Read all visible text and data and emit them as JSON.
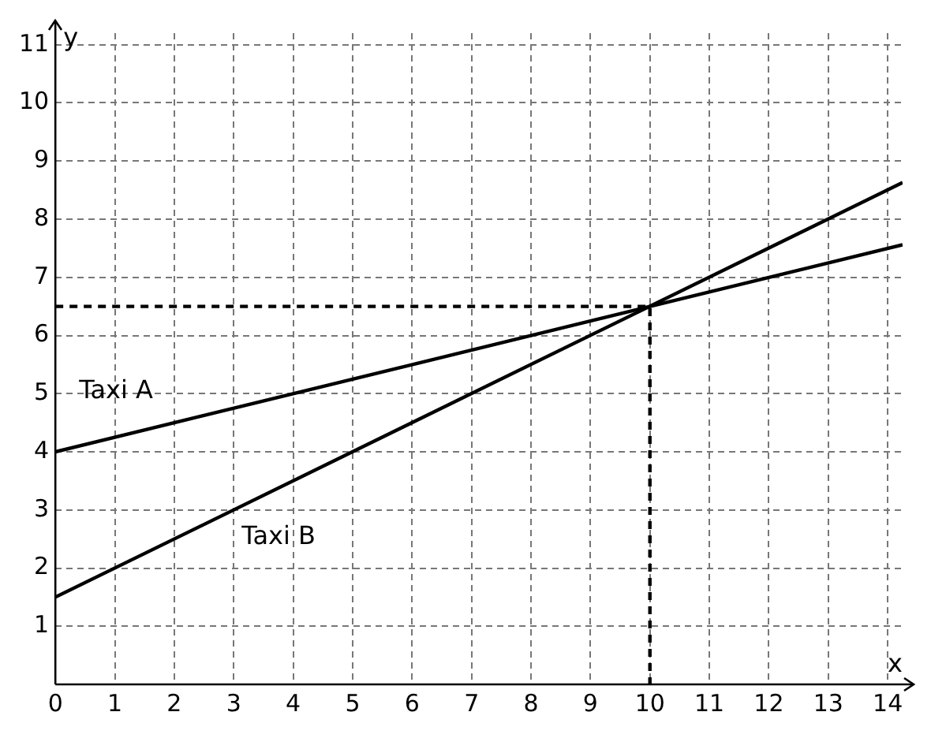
{
  "chart_data": {
    "type": "line",
    "xlabel": "x",
    "ylabel": "y",
    "xlim": [
      0,
      14.25
    ],
    "ylim": [
      0,
      11.2
    ],
    "xticks": [
      0,
      1,
      2,
      3,
      4,
      5,
      6,
      7,
      8,
      9,
      10,
      11,
      12,
      13,
      14
    ],
    "yticks": [
      1,
      2,
      3,
      4,
      5,
      6,
      7,
      8,
      9,
      10,
      11
    ],
    "grid": true,
    "legend": false,
    "marker": "none",
    "series": [
      {
        "name": "Taxi A",
        "color": "#000000",
        "x": [
          0,
          14.25
        ],
        "values": [
          4,
          7.56
        ],
        "line_style": "solid"
      },
      {
        "name": "Taxi B",
        "color": "#000000",
        "x": [
          0,
          14.25
        ],
        "values": [
          1.5,
          8.63
        ],
        "line_style": "solid"
      },
      {
        "type": "line",
        "color": "#000000",
        "x": [
          0,
          10,
          10
        ],
        "values": [
          6.5,
          6.5,
          0
        ],
        "line_style": "dashed"
      }
    ]
  }
}
